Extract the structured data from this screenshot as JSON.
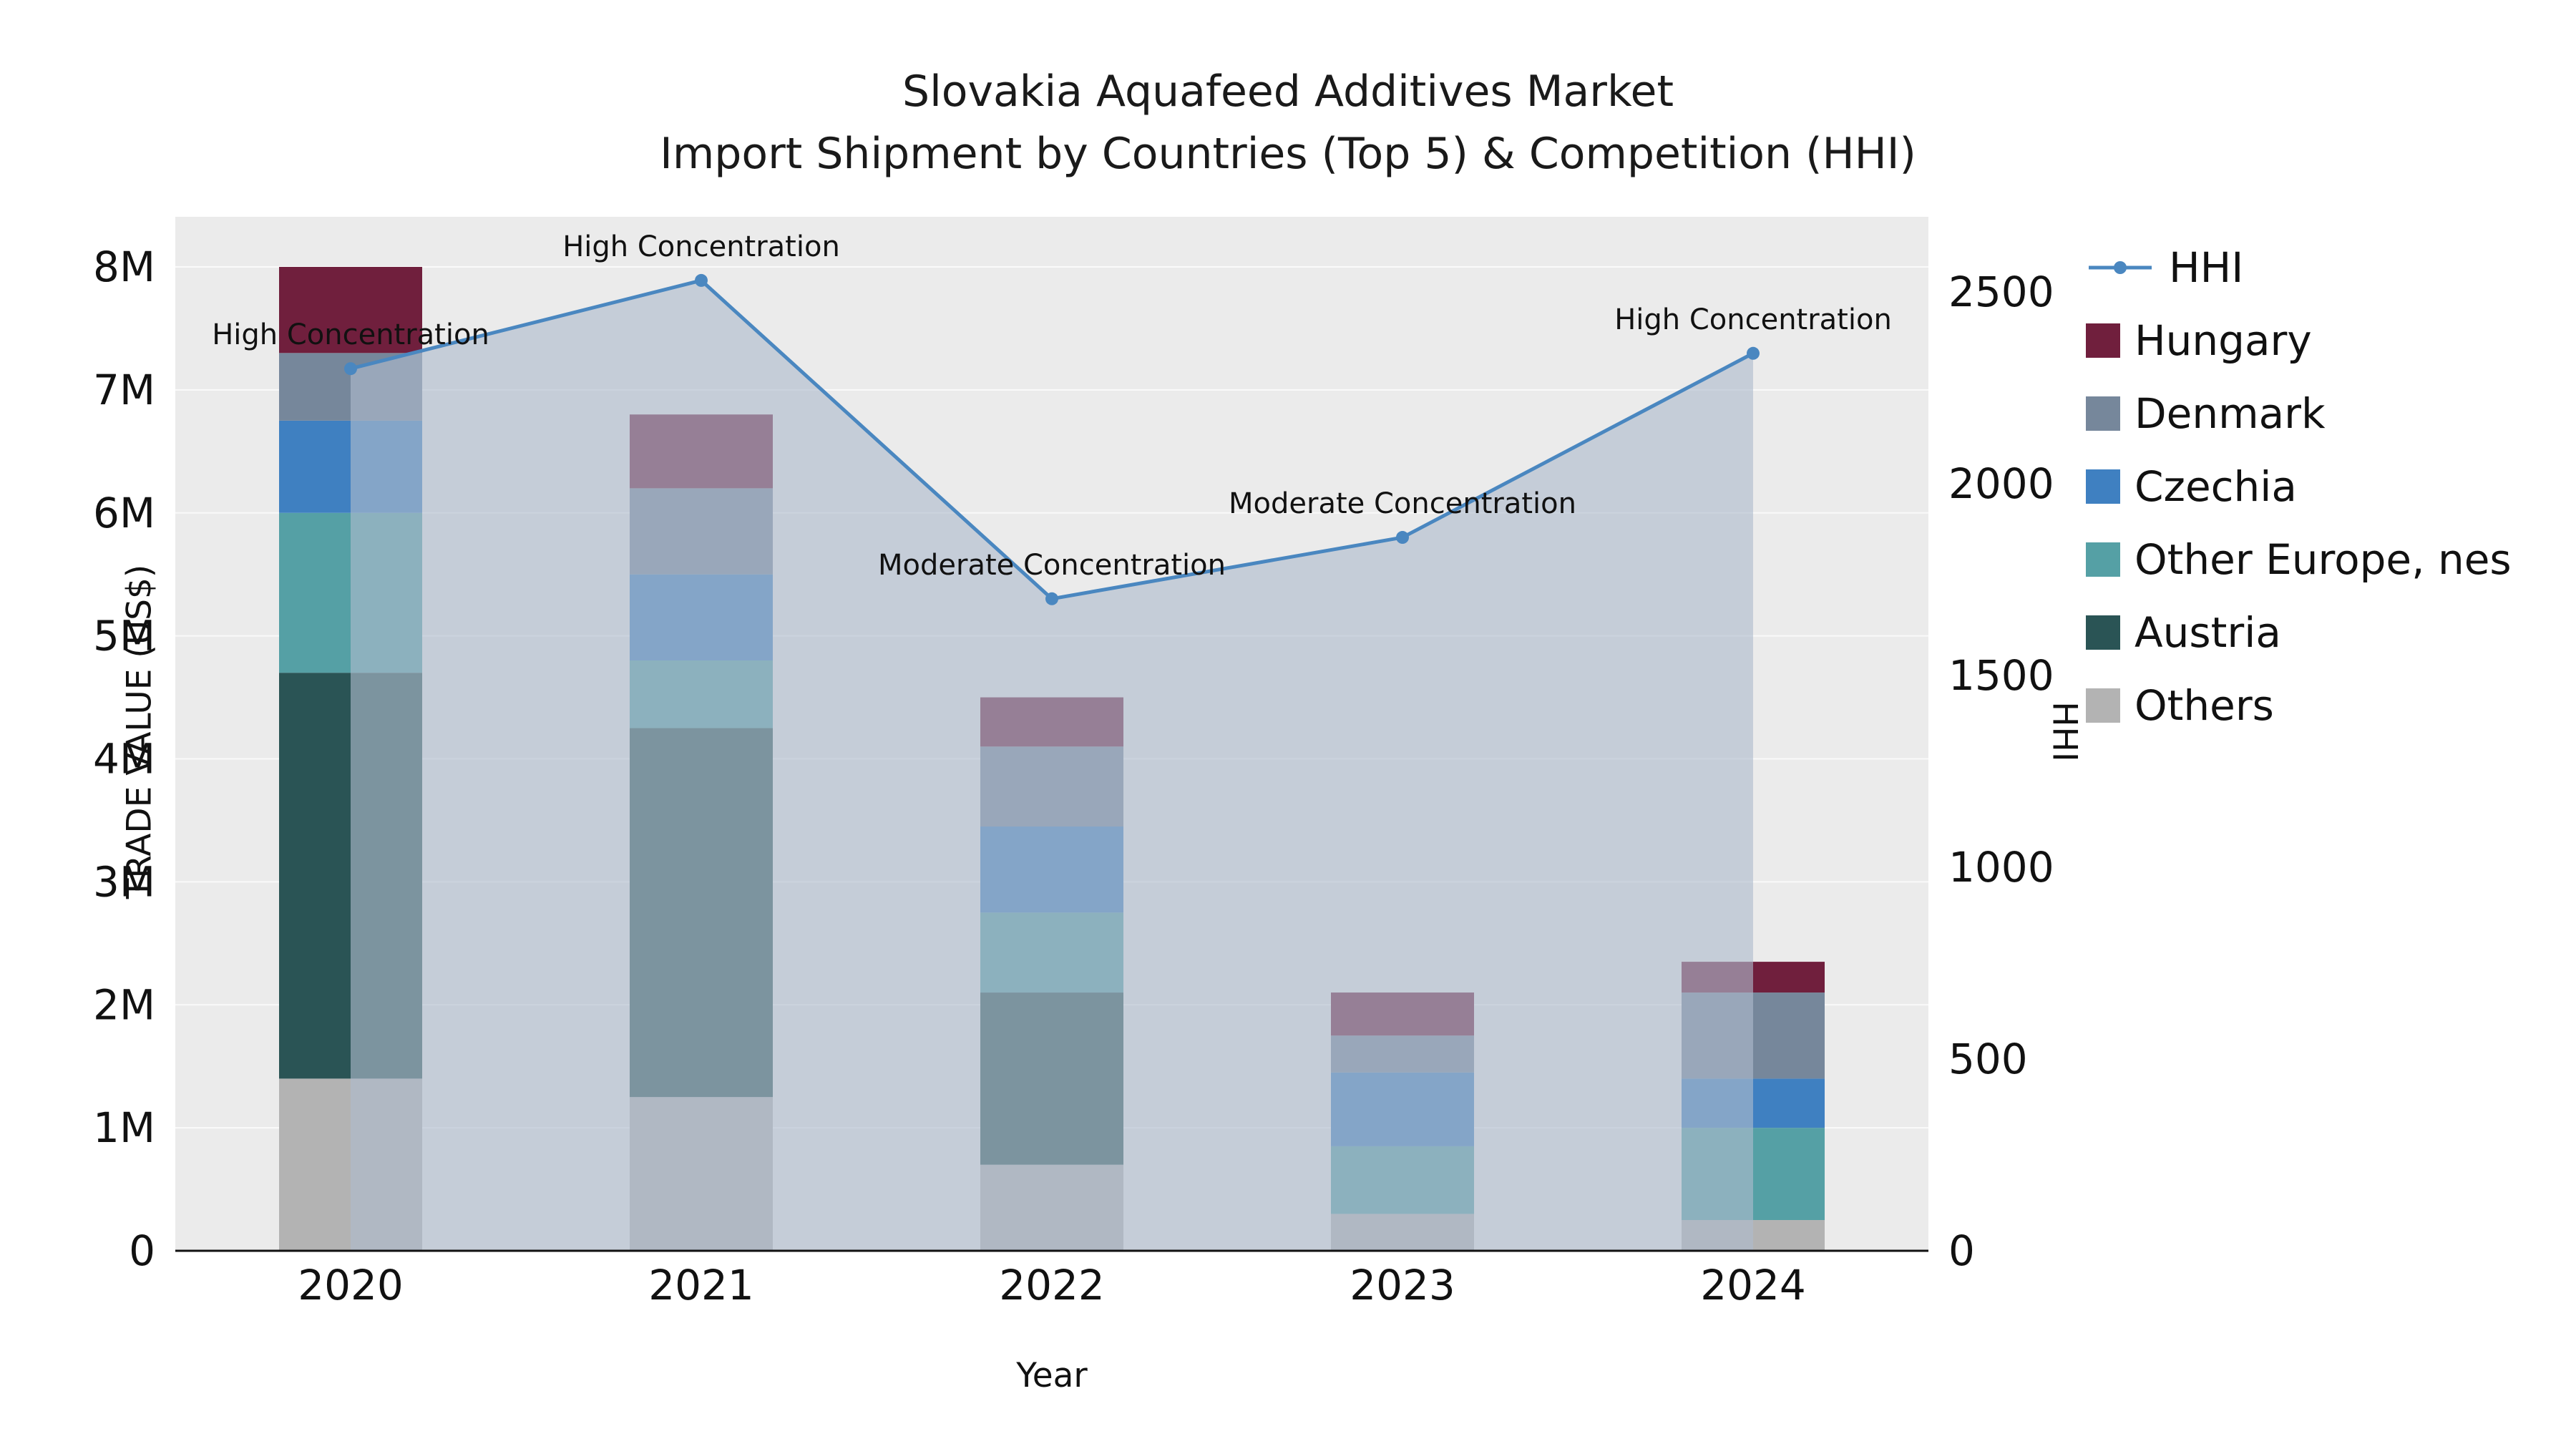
{
  "chart_data": {
    "type": "bar+line",
    "title": "Slovakia Aquafeed Additives Market",
    "subtitle": "Import Shipment by Countries (Top 5) & Competition (HHI)",
    "xlabel": "Year",
    "ylabel_left": "TRADE VALUE (US$)",
    "ylabel_right": "HHI",
    "categories": [
      "2020",
      "2021",
      "2022",
      "2023",
      "2024"
    ],
    "bar_value_unit": "millions US$",
    "series": [
      {
        "name": "Others",
        "color": "#b3b3b3",
        "values": [
          1.4,
          1.25,
          0.7,
          0.3,
          0.25
        ]
      },
      {
        "name": "Austria",
        "color": "#2a5455",
        "values": [
          3.3,
          3.0,
          1.4,
          0.0,
          0.0
        ]
      },
      {
        "name": "Other Europe, nes",
        "color": "#55a0a5",
        "values": [
          1.3,
          0.55,
          0.65,
          0.55,
          0.75
        ]
      },
      {
        "name": "Czechia",
        "color": "#3f80c1",
        "values": [
          0.75,
          0.7,
          0.7,
          0.6,
          0.4
        ]
      },
      {
        "name": "Denmark",
        "color": "#76879b",
        "values": [
          0.55,
          0.7,
          0.65,
          0.3,
          0.7
        ]
      },
      {
        "name": "Hungary",
        "color": "#701f3d",
        "values": [
          0.7,
          0.6,
          0.4,
          0.35,
          0.25
        ]
      }
    ],
    "line": {
      "name": "HHI",
      "color": "#4a87c0",
      "area_fill": "rgba(174,188,205,0.62)",
      "values": [
        2300,
        2530,
        1700,
        1860,
        2340
      ]
    },
    "annotations": [
      "High Concentration",
      "High Concentration",
      "Moderate Concentration",
      "Moderate Concentration",
      "High Concentration"
    ],
    "yticks_left": [
      "0",
      "1M",
      "2M",
      "3M",
      "4M",
      "5M",
      "6M",
      "7M",
      "8M"
    ],
    "yticks_right": [
      "0",
      "500",
      "1000",
      "1500",
      "2000",
      "2500"
    ],
    "axis_left_range": [
      0,
      8400000
    ],
    "axis_right_range": [
      0,
      2695
    ],
    "legend_order": [
      "HHI",
      "Hungary",
      "Denmark",
      "Czechia",
      "Other Europe, nes",
      "Austria",
      "Others"
    ],
    "plot_background": "#ebebeb",
    "gridline_color": "#fafafa"
  }
}
